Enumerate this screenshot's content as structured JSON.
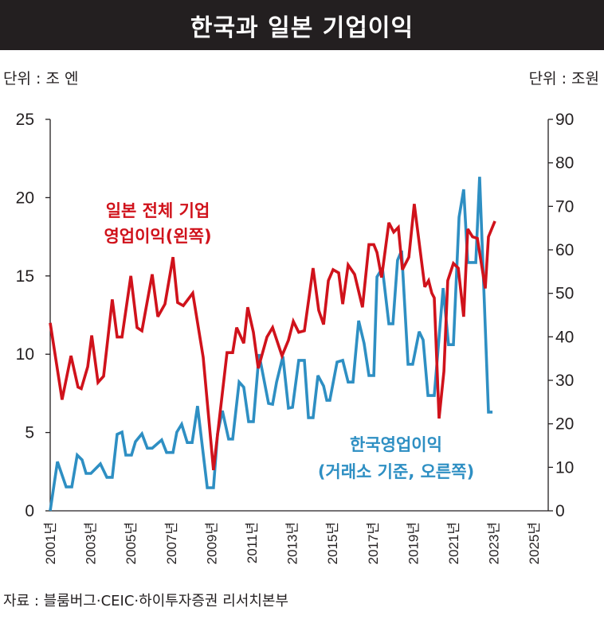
{
  "title": "한국과 일본 기업이익",
  "source": "자료 : 블룸버그·CEIC·하이투자증권 리서치본부",
  "chart_data": {
    "type": "line",
    "title": "한국과 일본 기업이익",
    "left_axis": {
      "unit_label": "단위 : 조 엔",
      "range": [
        0,
        25
      ],
      "ticks": [
        0,
        5,
        10,
        15,
        20,
        25
      ]
    },
    "right_axis": {
      "unit_label": "단위 : 조원",
      "range": [
        0,
        90
      ],
      "ticks": [
        0,
        10,
        20,
        30,
        40,
        50,
        60,
        70,
        80,
        90
      ]
    },
    "x_axis": {
      "range": [
        2001,
        2025
      ],
      "ticks": [
        "2001년",
        "2003년",
        "2005년",
        "2007년",
        "2009년",
        "2011년",
        "2013년",
        "2015년",
        "2017년",
        "2019년",
        "2021년",
        "2023년",
        "2025년"
      ]
    },
    "grid": false,
    "series": [
      {
        "name": "일본 전체 기업 영업이익(왼쪽)",
        "label_lines": [
          "일본 전체 기업",
          "영업이익(왼쪽)"
        ],
        "axis": "left",
        "color": "#d0121b",
        "points": [
          [
            2001.0,
            12.0
          ],
          [
            2001.59,
            7.1
          ],
          [
            2002.03,
            9.9
          ],
          [
            2002.38,
            7.9
          ],
          [
            2002.54,
            7.8
          ],
          [
            2002.86,
            9.2
          ],
          [
            2003.06,
            11.2
          ],
          [
            2003.37,
            8.2
          ],
          [
            2003.65,
            8.6
          ],
          [
            2004.08,
            13.5
          ],
          [
            2004.32,
            11.1
          ],
          [
            2004.56,
            11.1
          ],
          [
            2005.0,
            15.0
          ],
          [
            2005.31,
            11.7
          ],
          [
            2005.55,
            11.5
          ],
          [
            2006.06,
            15.1
          ],
          [
            2006.34,
            12.4
          ],
          [
            2006.69,
            13.2
          ],
          [
            2007.09,
            16.2
          ],
          [
            2007.32,
            13.3
          ],
          [
            2007.6,
            13.1
          ],
          [
            2008.07,
            13.9
          ],
          [
            2008.59,
            9.8
          ],
          [
            2009.1,
            2.6
          ],
          [
            2009.77,
            10.1
          ],
          [
            2010.05,
            10.1
          ],
          [
            2010.25,
            11.7
          ],
          [
            2010.6,
            10.7
          ],
          [
            2010.8,
            13.0
          ],
          [
            2011.08,
            11.4
          ],
          [
            2011.32,
            9.1
          ],
          [
            2011.75,
            11.1
          ],
          [
            2012.03,
            11.7
          ],
          [
            2012.5,
            9.9
          ],
          [
            2012.82,
            10.9
          ],
          [
            2013.06,
            12.1
          ],
          [
            2013.33,
            11.4
          ],
          [
            2013.61,
            11.5
          ],
          [
            2014.04,
            15.5
          ],
          [
            2014.32,
            12.8
          ],
          [
            2014.56,
            11.9
          ],
          [
            2014.8,
            14.7
          ],
          [
            2015.03,
            15.4
          ],
          [
            2015.31,
            15.2
          ],
          [
            2015.51,
            13.2
          ],
          [
            2015.78,
            15.7
          ],
          [
            2016.1,
            15.1
          ],
          [
            2016.49,
            13.0
          ],
          [
            2016.81,
            17.0
          ],
          [
            2017.05,
            17.0
          ],
          [
            2017.21,
            16.5
          ],
          [
            2017.44,
            14.9
          ],
          [
            2017.8,
            18.4
          ],
          [
            2018.04,
            17.8
          ],
          [
            2018.27,
            18.1
          ],
          [
            2018.47,
            15.4
          ],
          [
            2018.79,
            16.2
          ],
          [
            2019.06,
            19.6
          ],
          [
            2019.58,
            14.3
          ],
          [
            2019.77,
            14.7
          ],
          [
            2019.93,
            13.9
          ],
          [
            2020.05,
            13.6
          ],
          [
            2020.29,
            5.9
          ],
          [
            2020.53,
            8.9
          ],
          [
            2020.72,
            14.7
          ],
          [
            2021.0,
            15.8
          ],
          [
            2021.24,
            15.5
          ],
          [
            2021.51,
            12.4
          ],
          [
            2021.71,
            18.0
          ],
          [
            2021.95,
            17.5
          ],
          [
            2022.19,
            17.4
          ],
          [
            2022.58,
            14.2
          ],
          [
            2022.74,
            17.5
          ],
          [
            2023.06,
            18.5
          ]
        ]
      },
      {
        "name": "한국영업이익 (거래소 기준, 오른쪽)",
        "label_lines": [
          "한국영업이익",
          "(거래소 기준, 오른쪽)"
        ],
        "axis": "right",
        "color": "#2e8fc3",
        "points": [
          [
            2001.0,
            0
          ],
          [
            2001.36,
            11.3
          ],
          [
            2001.79,
            5.5
          ],
          [
            2002.07,
            5.5
          ],
          [
            2002.34,
            12.8
          ],
          [
            2002.58,
            11.7
          ],
          [
            2002.78,
            8.6
          ],
          [
            2003.02,
            8.6
          ],
          [
            2003.49,
            10.8
          ],
          [
            2003.81,
            7.7
          ],
          [
            2004.08,
            7.7
          ],
          [
            2004.32,
            17.6
          ],
          [
            2004.56,
            18.1
          ],
          [
            2004.75,
            12.8
          ],
          [
            2005.03,
            12.8
          ],
          [
            2005.23,
            15.9
          ],
          [
            2005.55,
            17.7
          ],
          [
            2005.82,
            14.4
          ],
          [
            2006.06,
            14.4
          ],
          [
            2006.53,
            16.3
          ],
          [
            2006.77,
            13.4
          ],
          [
            2007.09,
            13.4
          ],
          [
            2007.28,
            18.1
          ],
          [
            2007.52,
            19.9
          ],
          [
            2007.8,
            15.7
          ],
          [
            2008.04,
            15.7
          ],
          [
            2008.31,
            24.1
          ],
          [
            2008.79,
            5.3
          ],
          [
            2009.1,
            5.3
          ],
          [
            2009.3,
            17.7
          ],
          [
            2009.54,
            23.0
          ],
          [
            2009.85,
            16.5
          ],
          [
            2010.05,
            16.5
          ],
          [
            2010.37,
            29.6
          ],
          [
            2010.6,
            28.4
          ],
          [
            2010.84,
            20.5
          ],
          [
            2011.08,
            20.5
          ],
          [
            2011.36,
            36.0
          ],
          [
            2011.83,
            24.7
          ],
          [
            2012.03,
            24.5
          ],
          [
            2012.23,
            29.6
          ],
          [
            2012.54,
            35.5
          ],
          [
            2012.82,
            23.6
          ],
          [
            2013.02,
            23.8
          ],
          [
            2013.33,
            34.6
          ],
          [
            2013.61,
            34.6
          ],
          [
            2013.81,
            21.4
          ],
          [
            2014.04,
            21.4
          ],
          [
            2014.28,
            31.1
          ],
          [
            2014.56,
            28.7
          ],
          [
            2014.72,
            25.4
          ],
          [
            2014.87,
            25.4
          ],
          [
            2015.23,
            34.2
          ],
          [
            2015.51,
            34.6
          ],
          [
            2015.78,
            29.6
          ],
          [
            2016.02,
            29.6
          ],
          [
            2016.3,
            43.7
          ],
          [
            2016.57,
            38.5
          ],
          [
            2016.81,
            31.1
          ],
          [
            2017.05,
            31.1
          ],
          [
            2017.21,
            53.8
          ],
          [
            2017.48,
            55.8
          ],
          [
            2017.8,
            43.0
          ],
          [
            2018.0,
            43.0
          ],
          [
            2018.23,
            57.6
          ],
          [
            2018.43,
            59.8
          ],
          [
            2018.75,
            33.7
          ],
          [
            2018.98,
            33.7
          ],
          [
            2019.3,
            41.2
          ],
          [
            2019.5,
            39.3
          ],
          [
            2019.74,
            26.5
          ],
          [
            2020.05,
            26.5
          ],
          [
            2020.49,
            51.2
          ],
          [
            2020.76,
            38.2
          ],
          [
            2021.0,
            38.2
          ],
          [
            2021.28,
            67.5
          ],
          [
            2021.51,
            73.9
          ],
          [
            2021.71,
            57.1
          ],
          [
            2022.11,
            57.1
          ],
          [
            2022.3,
            76.8
          ],
          [
            2022.74,
            22.7
          ],
          [
            2022.94,
            22.7
          ]
        ]
      }
    ]
  }
}
